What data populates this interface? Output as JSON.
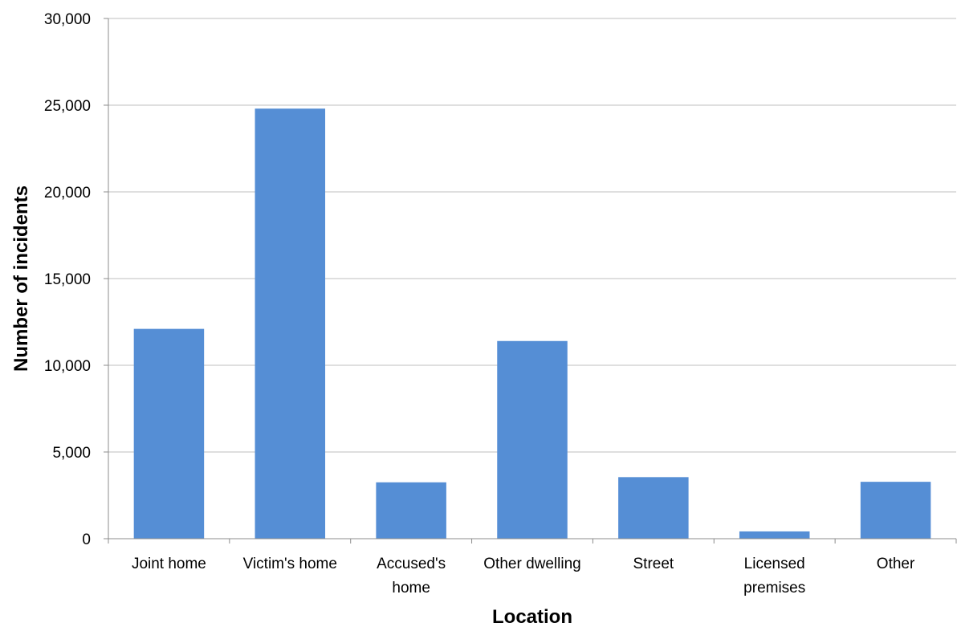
{
  "chart_data": {
    "type": "bar",
    "title": "",
    "xlabel": "Location",
    "ylabel": "Number of incidents",
    "categories": [
      [
        "Joint home"
      ],
      [
        "Victim's home"
      ],
      [
        "Accused's",
        "home"
      ],
      [
        "Other dwelling"
      ],
      [
        "Street"
      ],
      [
        "Licensed",
        "premises"
      ],
      [
        "Other"
      ]
    ],
    "values": [
      12100,
      24800,
      3250,
      11400,
      3550,
      420,
      3280
    ],
    "ylim": [
      0,
      30000
    ],
    "yticks": [
      0,
      5000,
      10000,
      15000,
      20000,
      25000,
      30000
    ],
    "ytick_labels": [
      "0",
      "5,000",
      "10,000",
      "15,000",
      "20,000",
      "25,000",
      "30,000"
    ],
    "grid": true,
    "legend": "none",
    "bar_color": "#558ed5"
  }
}
